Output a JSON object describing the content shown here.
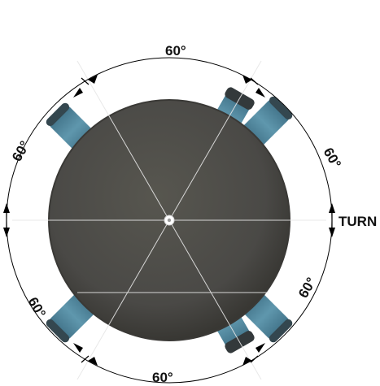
{
  "diagram": {
    "labels": {
      "top": "60°",
      "upper_right": "60°",
      "lower_right": "60°",
      "bottom": "60°",
      "lower_left": "60°",
      "upper_left": "60°",
      "turn": "TURN"
    },
    "colors": {
      "body": "#4a4946",
      "body_edge": "#3a3936",
      "leg_teal": "#4d8298",
      "leg_dark": "#3c3f3e",
      "lines": "#e8e8e8",
      "arc": "#000000"
    },
    "icons": {
      "center": "center-pivot-icon",
      "legs": "robot-leg-icon",
      "arrows": "dimension-arrow-icon"
    }
  }
}
